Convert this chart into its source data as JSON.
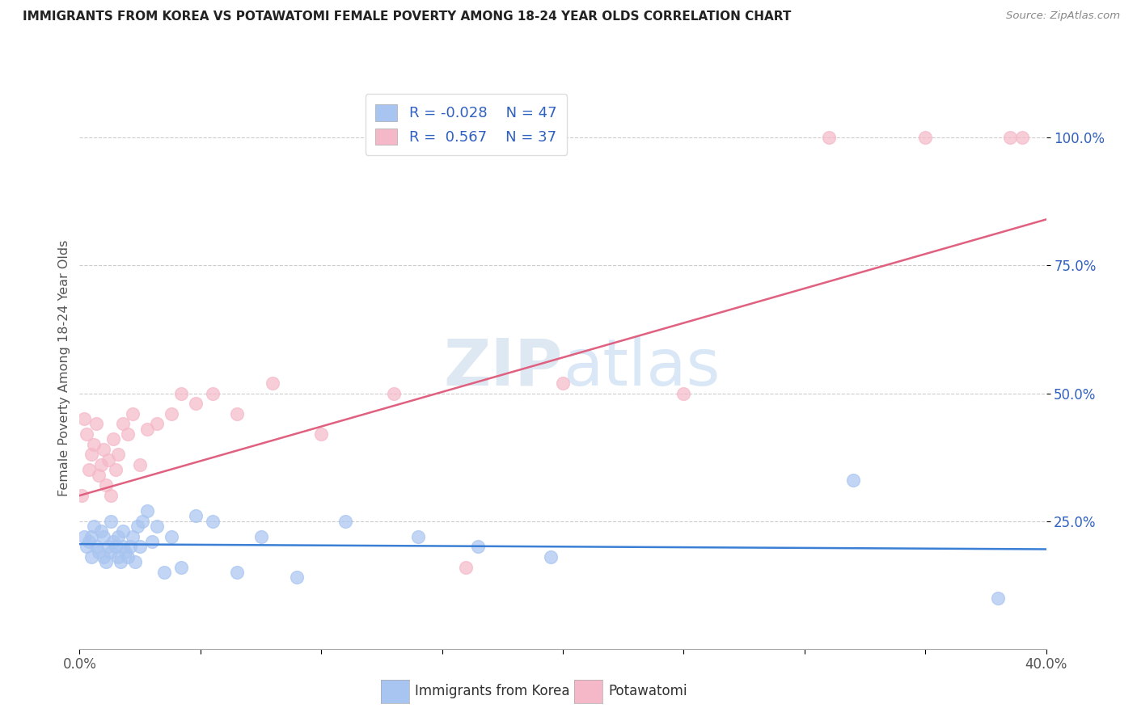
{
  "title": "IMMIGRANTS FROM KOREA VS POTAWATOMI FEMALE POVERTY AMONG 18-24 YEAR OLDS CORRELATION CHART",
  "source": "Source: ZipAtlas.com",
  "ylabel": "Female Poverty Among 18-24 Year Olds",
  "xlim": [
    0.0,
    0.4
  ],
  "ylim": [
    0.0,
    1.1
  ],
  "yticks": [
    0.25,
    0.5,
    0.75,
    1.0
  ],
  "ytick_labels": [
    "25.0%",
    "50.0%",
    "75.0%",
    "100.0%"
  ],
  "xtick_vals": [
    0.0,
    0.05,
    0.1,
    0.15,
    0.2,
    0.25,
    0.3,
    0.35,
    0.4
  ],
  "xtick_labels_sparse": {
    "0": "0.0%",
    "8": "40.0%"
  },
  "blue_R": "-0.028",
  "blue_N": "47",
  "pink_R": "0.567",
  "pink_N": "37",
  "blue_color": "#a8c4f0",
  "pink_color": "#f5b8c8",
  "blue_line_color": "#3a7fd5",
  "pink_line_color": "#e06080",
  "watermark_zip": "ZIP",
  "watermark_atlas": "atlas",
  "legend_label_blue": "Immigrants from Korea",
  "legend_label_pink": "Potawatomi",
  "blue_scatter_x": [
    0.002,
    0.003,
    0.004,
    0.005,
    0.005,
    0.006,
    0.007,
    0.008,
    0.009,
    0.01,
    0.01,
    0.011,
    0.012,
    0.013,
    0.013,
    0.014,
    0.015,
    0.016,
    0.016,
    0.017,
    0.018,
    0.018,
    0.019,
    0.02,
    0.021,
    0.022,
    0.023,
    0.024,
    0.025,
    0.026,
    0.028,
    0.03,
    0.032,
    0.035,
    0.038,
    0.042,
    0.048,
    0.055,
    0.065,
    0.075,
    0.09,
    0.11,
    0.14,
    0.165,
    0.195,
    0.32,
    0.38
  ],
  "blue_scatter_y": [
    0.22,
    0.2,
    0.21,
    0.22,
    0.18,
    0.24,
    0.2,
    0.19,
    0.23,
    0.18,
    0.22,
    0.17,
    0.2,
    0.19,
    0.25,
    0.21,
    0.2,
    0.18,
    0.22,
    0.17,
    0.2,
    0.23,
    0.19,
    0.18,
    0.2,
    0.22,
    0.17,
    0.24,
    0.2,
    0.25,
    0.27,
    0.21,
    0.24,
    0.15,
    0.22,
    0.16,
    0.26,
    0.25,
    0.15,
    0.22,
    0.14,
    0.25,
    0.22,
    0.2,
    0.18,
    0.33,
    0.1
  ],
  "pink_scatter_x": [
    0.001,
    0.002,
    0.003,
    0.004,
    0.005,
    0.006,
    0.007,
    0.008,
    0.009,
    0.01,
    0.011,
    0.012,
    0.013,
    0.014,
    0.015,
    0.016,
    0.018,
    0.02,
    0.022,
    0.025,
    0.028,
    0.032,
    0.038,
    0.042,
    0.048,
    0.055,
    0.065,
    0.08,
    0.1,
    0.13,
    0.16,
    0.2,
    0.25,
    0.31,
    0.35,
    0.385,
    0.39
  ],
  "pink_scatter_y": [
    0.3,
    0.45,
    0.42,
    0.35,
    0.38,
    0.4,
    0.44,
    0.34,
    0.36,
    0.39,
    0.32,
    0.37,
    0.3,
    0.41,
    0.35,
    0.38,
    0.44,
    0.42,
    0.46,
    0.36,
    0.43,
    0.44,
    0.46,
    0.5,
    0.48,
    0.5,
    0.46,
    0.52,
    0.42,
    0.5,
    0.16,
    0.52,
    0.5,
    1.0,
    1.0,
    1.0,
    1.0
  ],
  "blue_trend_x": [
    0.0,
    0.4
  ],
  "blue_trend_y": [
    0.205,
    0.195
  ],
  "pink_trend_x": [
    0.0,
    0.4
  ],
  "pink_trend_y": [
    0.3,
    0.84
  ]
}
